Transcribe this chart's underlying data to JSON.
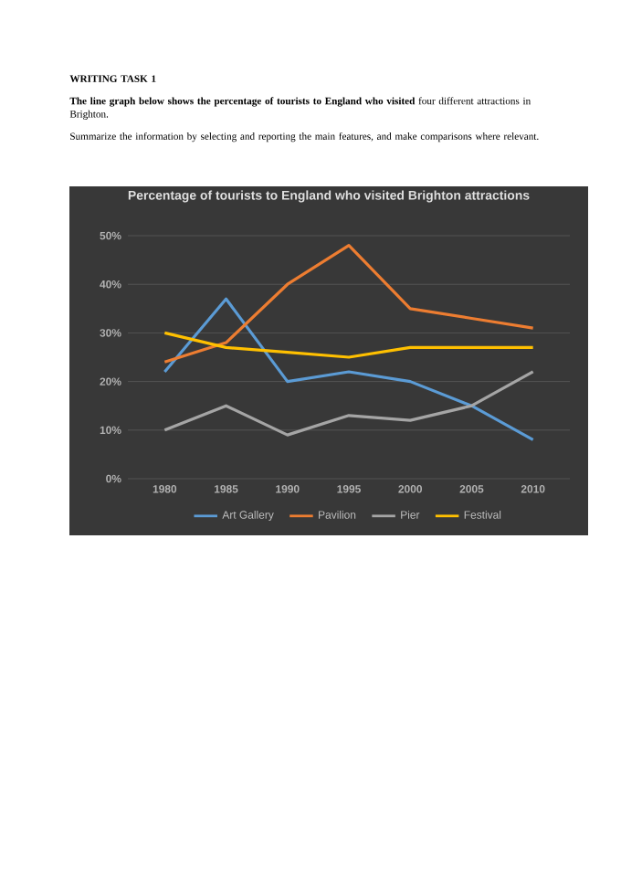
{
  "chart_data": {
    "type": "line",
    "title": "Percentage of tourists to England who visited Brighton attractions",
    "annotations": [
      "WRITING TASK 1",
      "**The line graph below shows the percentage of tourists to England who visited** four different attractions in Brighton.",
      "Summarize the information by selecting and reporting the main features, and make comparisons where relevant."
    ],
    "x": [
      1980,
      1985,
      1990,
      1995,
      2000,
      2005,
      2010
    ],
    "xlim": [
      1977,
      2013
    ],
    "xticks": [
      1980,
      1985,
      1990,
      1995,
      2000,
      2005,
      2010
    ],
    "ylim": [
      0,
      50
    ],
    "yticks": [
      {
        "value": 0,
        "label": "0%"
      },
      {
        "value": 10,
        "label": "10%"
      },
      {
        "value": 20,
        "label": "20%"
      },
      {
        "value": 30,
        "label": "30%"
      },
      {
        "value": 40,
        "label": "40%"
      },
      {
        "value": 50,
        "label": "50%"
      }
    ],
    "grid": "y",
    "legend": "bottom",
    "marker": "none",
    "line_style": "solid",
    "series": [
      {
        "name": "Art Gallery",
        "color": "#5b9bd5",
        "values": [
          22,
          37,
          20,
          22,
          20,
          15,
          8
        ]
      },
      {
        "name": "Pavilion",
        "color": "#ed7d31",
        "values": [
          24,
          28,
          40,
          48,
          35,
          33,
          31
        ]
      },
      {
        "name": "Pier",
        "color": "#a5a5a5",
        "values": [
          10,
          15,
          9,
          13,
          12,
          15,
          22
        ]
      },
      {
        "name": "Festival",
        "color": "#ffc000",
        "values": [
          30,
          27,
          26,
          25,
          27,
          27,
          27
        ]
      }
    ]
  }
}
